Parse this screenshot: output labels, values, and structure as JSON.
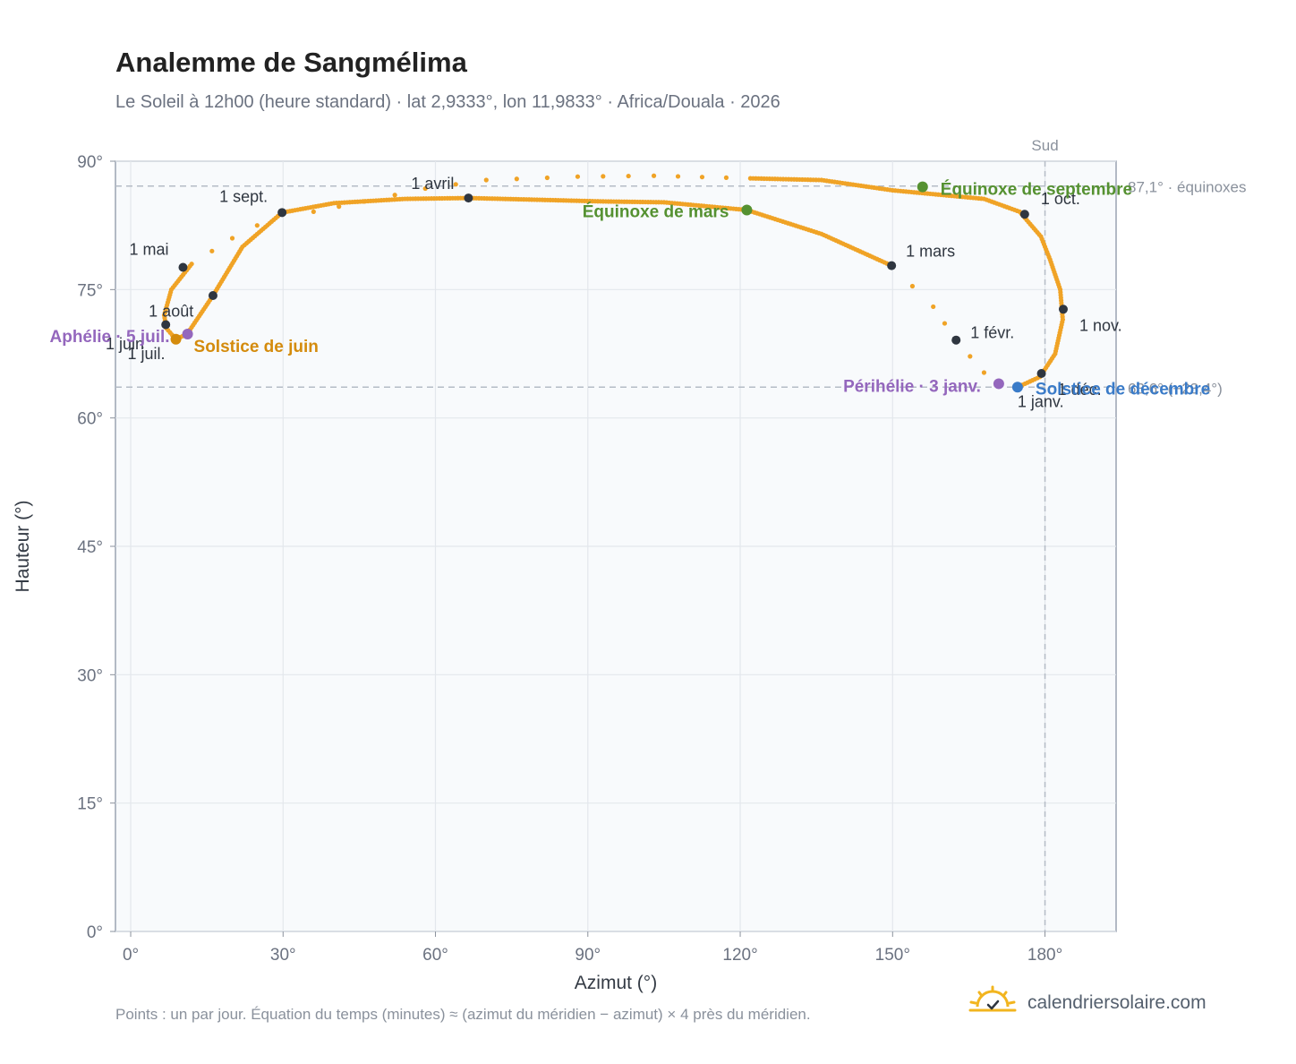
{
  "title": "Analemme de Sangmélima",
  "subtitle": "Le Soleil à 12h00 (heure standard) · lat 2,9333°, lon 11,9833° · Africa/Douala · 2026",
  "footnote": "Points : un par jour. Équation du temps (minutes) ≈ (azimut du méridien − azimut) × 4 près du méridien.",
  "brand": {
    "text": "calendriersolaire.com",
    "icon": "sun-check-icon"
  },
  "colors": {
    "curve": "#f0a326",
    "month_marker": "#2f3640",
    "equinox": "#559131",
    "june_solstice": "#d48b0c",
    "december_solstice": "#3a7bc8",
    "apsis": "#9467bd",
    "reference": "#8a919c",
    "plot_bg": "#f8fafc"
  },
  "chart_data": {
    "type": "scatter",
    "title": "Analemme de Sangmélima",
    "xlabel": "Azimut (°)",
    "ylabel": "Hauteur (°)",
    "xlim": [
      -3,
      194
    ],
    "ylim": [
      0,
      90
    ],
    "xticks": [
      0,
      30,
      60,
      90,
      120,
      150,
      180
    ],
    "yticks": [
      0,
      15,
      30,
      45,
      60,
      75,
      90
    ],
    "xtick_labels": [
      "0°",
      "30°",
      "60°",
      "90°",
      "120°",
      "150°",
      "180°"
    ],
    "ytick_labels": [
      "0°",
      "15°",
      "30°",
      "45°",
      "60°",
      "75°",
      "90°"
    ],
    "grid": true,
    "south_line": {
      "x": 180,
      "label": "Sud"
    },
    "reference_lines": [
      {
        "y": 87.1,
        "label": "87,1° · équinoxes"
      },
      {
        "y": 63.6,
        "label": "63,6° (−23,4°)"
      }
    ],
    "path": [
      [
        174.6,
        63.6
      ],
      [
        179.0,
        64.8
      ],
      [
        182.0,
        67.5
      ],
      [
        183.5,
        71.5
      ],
      [
        183.0,
        75.0
      ],
      [
        181.0,
        78.5
      ],
      [
        179.2,
        81.2
      ],
      [
        175.0,
        84.1
      ],
      [
        168.0,
        85.6
      ],
      [
        150.0,
        86.6
      ],
      [
        136.0,
        87.8
      ],
      [
        122.0,
        88.0
      ],
      [
        103.0,
        88.3
      ],
      [
        88.0,
        88.2
      ],
      [
        70.0,
        87.8
      ],
      [
        58.0,
        86.8
      ],
      [
        46.0,
        85.3
      ],
      [
        36.0,
        84.1
      ],
      [
        29.8,
        84.0
      ],
      [
        20.0,
        81.0
      ],
      [
        12.0,
        78.0
      ],
      [
        8.0,
        75.0
      ],
      [
        6.6,
        72.0
      ],
      [
        7.0,
        70.5
      ],
      [
        8.9,
        69.2
      ],
      [
        11.1,
        69.8
      ],
      [
        16.2,
        74.3
      ],
      [
        22.0,
        80.0
      ],
      [
        29.8,
        84.0
      ],
      [
        40.0,
        85.1
      ],
      [
        54.0,
        85.6
      ],
      [
        66.5,
        85.7
      ],
      [
        80.0,
        85.5
      ],
      [
        93.0,
        85.3
      ],
      [
        105.0,
        85.2
      ],
      [
        121.3,
        84.3
      ],
      [
        136.0,
        81.5
      ],
      [
        149.8,
        77.8
      ],
      [
        158.0,
        73.0
      ],
      [
        162.5,
        69.1
      ],
      [
        168.0,
        65.3
      ],
      [
        170.9,
        64.0
      ],
      [
        174.6,
        63.6
      ]
    ],
    "sparse_ranges": [
      [
        11,
        20
      ],
      [
        37,
        43
      ]
    ],
    "month_markers": [
      {
        "label": "1 janv.",
        "x": 174.6,
        "y": 63.6
      },
      {
        "label": "1 févr.",
        "x": 162.5,
        "y": 69.1
      },
      {
        "label": "1 mars",
        "x": 149.8,
        "y": 77.8
      },
      {
        "label": "1 avril",
        "x": 66.5,
        "y": 85.7
      },
      {
        "label": "1 mai",
        "x": 10.3,
        "y": 77.6
      },
      {
        "label": "1 juin",
        "x": 16.2,
        "y": 74.3
      },
      {
        "label": "1 juil.",
        "x": 8.9,
        "y": 69.2
      },
      {
        "label": "1 août",
        "x": 6.9,
        "y": 70.9
      },
      {
        "label": "1 sept.",
        "x": 29.8,
        "y": 84.0
      },
      {
        "label": "1 oct.",
        "x": 176.0,
        "y": 83.8
      },
      {
        "label": "1 nov.",
        "x": 183.6,
        "y": 72.7
      },
      {
        "label": "1 déc.",
        "x": 179.3,
        "y": 65.2
      }
    ],
    "events": [
      {
        "label": "Équinoxe de mars",
        "x": 121.3,
        "y": 84.3,
        "kind": "equinox"
      },
      {
        "label": "Équinoxe de septembre",
        "x": 155.9,
        "y": 87.0,
        "kind": "equinox"
      },
      {
        "label": "Solstice de juin",
        "x": 8.9,
        "y": 69.2,
        "kind": "june_solstice"
      },
      {
        "label": "Solstice de décembre",
        "x": 174.6,
        "y": 63.6,
        "kind": "december_solstice"
      },
      {
        "label": "Aphélie · 5 juil.",
        "x": 11.2,
        "y": 69.8,
        "kind": "apsis"
      },
      {
        "label": "Périhélie · 3 janv.",
        "x": 170.9,
        "y": 64.0,
        "kind": "apsis"
      }
    ]
  }
}
